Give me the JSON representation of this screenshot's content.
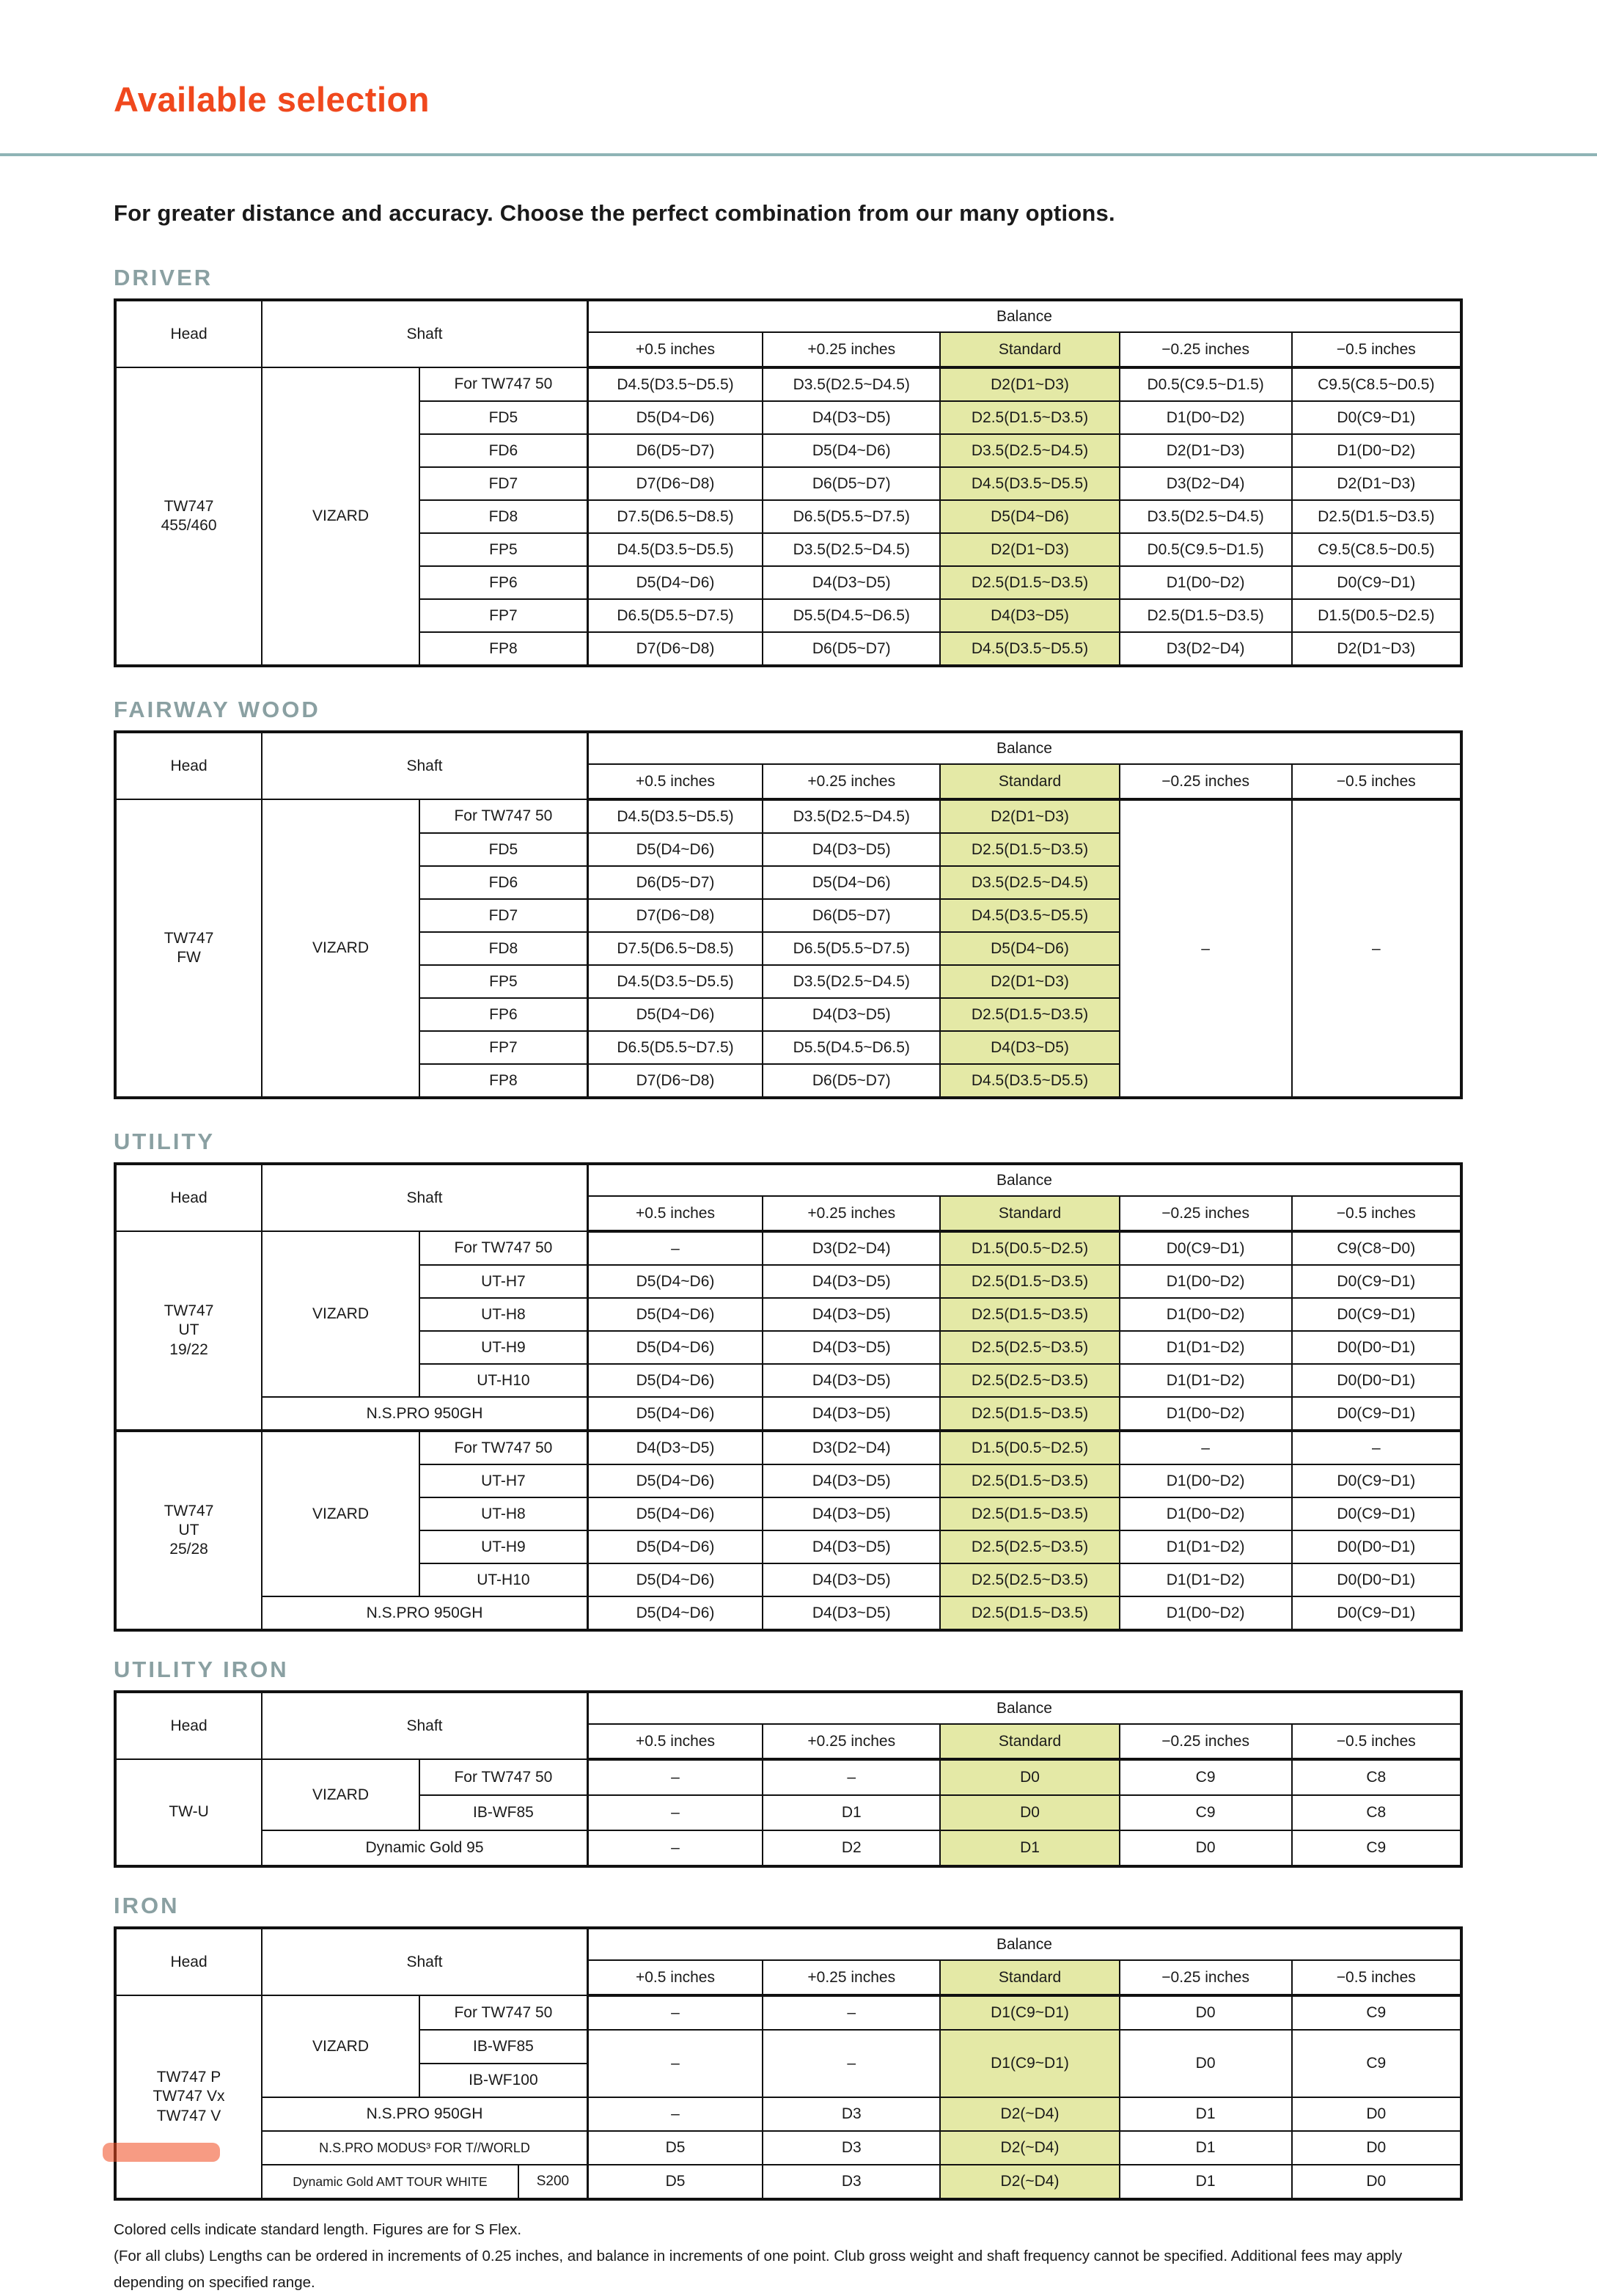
{
  "page": {
    "title": "Available selection",
    "subtitle": "For greater distance and accuracy. Choose the perfect combination from our many options.",
    "footnotes": [
      "Colored cells indicate standard length. Figures are for S Flex.",
      "(For all clubs) Lengths can be ordered in increments of 0.25 inches, and balance in increments of one point. Club gross weight and shaft frequency cannot be specified. Additional fees may apply depending on specified range."
    ],
    "colors": {
      "accent_orange": "#f0481d",
      "rule_teal": "#8fb4b6",
      "section_title": "#8aa0a2",
      "standard_highlight": "#e4e9a6",
      "border_black": "#111111"
    }
  },
  "table_headers": {
    "head": "Head",
    "shaft": "Shaft",
    "balance": "Balance",
    "cols": [
      "+0.5 inches",
      "+0.25 inches",
      "Standard",
      "−0.25 inches",
      "−0.5 inches"
    ],
    "standard_col_index": 2
  },
  "col_widths": [
    "10.9%",
    "11.7%",
    "12.5%",
    "13.0%",
    "13.2%",
    "13.3%",
    "12.8%",
    "12.6%"
  ],
  "sections": [
    {
      "title": "DRIVER",
      "rows": [
        [
          {
            "t": "TW747\n455/460",
            "rs": 9,
            "k": "head"
          },
          {
            "t": "VIZARD",
            "rs": 9,
            "k": "sg"
          },
          {
            "t": "For TW747 50",
            "k": "sn"
          },
          {
            "t": "D4.5(D3.5~D5.5)"
          },
          {
            "t": "D3.5(D2.5~D4.5)"
          },
          {
            "t": "D2(D1~D3)",
            "k": "std"
          },
          {
            "t": "D0.5(C9.5~D1.5)"
          },
          {
            "t": "C9.5(C8.5~D0.5)"
          }
        ],
        [
          {
            "t": "FD5",
            "k": "sn"
          },
          {
            "t": "D5(D4~D6)"
          },
          {
            "t": "D4(D3~D5)"
          },
          {
            "t": "D2.5(D1.5~D3.5)",
            "k": "std"
          },
          {
            "t": "D1(D0~D2)"
          },
          {
            "t": "D0(C9~D1)"
          }
        ],
        [
          {
            "t": "FD6",
            "k": "sn"
          },
          {
            "t": "D6(D5~D7)"
          },
          {
            "t": "D5(D4~D6)"
          },
          {
            "t": "D3.5(D2.5~D4.5)",
            "k": "std"
          },
          {
            "t": "D2(D1~D3)"
          },
          {
            "t": "D1(D0~D2)"
          }
        ],
        [
          {
            "t": "FD7",
            "k": "sn"
          },
          {
            "t": "D7(D6~D8)"
          },
          {
            "t": "D6(D5~D7)"
          },
          {
            "t": "D4.5(D3.5~D5.5)",
            "k": "std"
          },
          {
            "t": "D3(D2~D4)"
          },
          {
            "t": "D2(D1~D3)"
          }
        ],
        [
          {
            "t": "FD8",
            "k": "sn"
          },
          {
            "t": "D7.5(D6.5~D8.5)"
          },
          {
            "t": "D6.5(D5.5~D7.5)"
          },
          {
            "t": "D5(D4~D6)",
            "k": "std"
          },
          {
            "t": "D3.5(D2.5~D4.5)"
          },
          {
            "t": "D2.5(D1.5~D3.5)"
          }
        ],
        [
          {
            "t": "FP5",
            "k": "sn"
          },
          {
            "t": "D4.5(D3.5~D5.5)"
          },
          {
            "t": "D3.5(D2.5~D4.5)"
          },
          {
            "t": "D2(D1~D3)",
            "k": "std"
          },
          {
            "t": "D0.5(C9.5~D1.5)"
          },
          {
            "t": "C9.5(C8.5~D0.5)"
          }
        ],
        [
          {
            "t": "FP6",
            "k": "sn"
          },
          {
            "t": "D5(D4~D6)"
          },
          {
            "t": "D4(D3~D5)"
          },
          {
            "t": "D2.5(D1.5~D3.5)",
            "k": "std"
          },
          {
            "t": "D1(D0~D2)"
          },
          {
            "t": "D0(C9~D1)"
          }
        ],
        [
          {
            "t": "FP7",
            "k": "sn"
          },
          {
            "t": "D6.5(D5.5~D7.5)"
          },
          {
            "t": "D5.5(D4.5~D6.5)"
          },
          {
            "t": "D4(D3~D5)",
            "k": "std"
          },
          {
            "t": "D2.5(D1.5~D3.5)"
          },
          {
            "t": "D1.5(D0.5~D2.5)"
          }
        ],
        [
          {
            "t": "FP8",
            "k": "sn"
          },
          {
            "t": "D7(D6~D8)"
          },
          {
            "t": "D6(D5~D7)"
          },
          {
            "t": "D4.5(D3.5~D5.5)",
            "k": "std"
          },
          {
            "t": "D3(D2~D4)"
          },
          {
            "t": "D2(D1~D3)"
          }
        ]
      ]
    },
    {
      "title": "FAIRWAY WOOD",
      "rows": [
        [
          {
            "t": "TW747\nFW",
            "rs": 9,
            "k": "head"
          },
          {
            "t": "VIZARD",
            "rs": 9,
            "k": "sg"
          },
          {
            "t": "For TW747 50",
            "k": "sn"
          },
          {
            "t": "D4.5(D3.5~D5.5)"
          },
          {
            "t": "D3.5(D2.5~D4.5)"
          },
          {
            "t": "D2(D1~D3)",
            "k": "std"
          },
          {
            "t": "–",
            "rs": 9,
            "k": "dash"
          },
          {
            "t": "–",
            "rs": 9,
            "k": "dash"
          }
        ],
        [
          {
            "t": "FD5",
            "k": "sn"
          },
          {
            "t": "D5(D4~D6)"
          },
          {
            "t": "D4(D3~D5)"
          },
          {
            "t": "D2.5(D1.5~D3.5)",
            "k": "std"
          }
        ],
        [
          {
            "t": "FD6",
            "k": "sn"
          },
          {
            "t": "D6(D5~D7)"
          },
          {
            "t": "D5(D4~D6)"
          },
          {
            "t": "D3.5(D2.5~D4.5)",
            "k": "std"
          }
        ],
        [
          {
            "t": "FD7",
            "k": "sn"
          },
          {
            "t": "D7(D6~D8)"
          },
          {
            "t": "D6(D5~D7)"
          },
          {
            "t": "D4.5(D3.5~D5.5)",
            "k": "std"
          }
        ],
        [
          {
            "t": "FD8",
            "k": "sn"
          },
          {
            "t": "D7.5(D6.5~D8.5)"
          },
          {
            "t": "D6.5(D5.5~D7.5)"
          },
          {
            "t": "D5(D4~D6)",
            "k": "std"
          }
        ],
        [
          {
            "t": "FP5",
            "k": "sn"
          },
          {
            "t": "D4.5(D3.5~D5.5)"
          },
          {
            "t": "D3.5(D2.5~D4.5)"
          },
          {
            "t": "D2(D1~D3)",
            "k": "std"
          }
        ],
        [
          {
            "t": "FP6",
            "k": "sn"
          },
          {
            "t": "D5(D4~D6)"
          },
          {
            "t": "D4(D3~D5)"
          },
          {
            "t": "D2.5(D1.5~D3.5)",
            "k": "std"
          }
        ],
        [
          {
            "t": "FP7",
            "k": "sn"
          },
          {
            "t": "D6.5(D5.5~D7.5)"
          },
          {
            "t": "D5.5(D4.5~D6.5)"
          },
          {
            "t": "D4(D3~D5)",
            "k": "std"
          }
        ],
        [
          {
            "t": "FP8",
            "k": "sn"
          },
          {
            "t": "D7(D6~D8)"
          },
          {
            "t": "D6(D5~D7)"
          },
          {
            "t": "D4.5(D3.5~D5.5)",
            "k": "std"
          }
        ]
      ]
    },
    {
      "title": "UTILITY",
      "rows": [
        [
          {
            "t": "TW747\nUT\n19/22",
            "rs": 6,
            "k": "head"
          },
          {
            "t": "VIZARD",
            "rs": 5,
            "k": "sg"
          },
          {
            "t": "For TW747 50",
            "k": "sn"
          },
          {
            "t": "–",
            "k": "dash"
          },
          {
            "t": "D3(D2~D4)"
          },
          {
            "t": "D1.5(D0.5~D2.5)",
            "k": "std"
          },
          {
            "t": "D0(C9~D1)"
          },
          {
            "t": "C9(C8~D0)"
          }
        ],
        [
          {
            "t": "UT-H7",
            "k": "sn"
          },
          {
            "t": "D5(D4~D6)"
          },
          {
            "t": "D4(D3~D5)"
          },
          {
            "t": "D2.5(D1.5~D3.5)",
            "k": "std"
          },
          {
            "t": "D1(D0~D2)"
          },
          {
            "t": "D0(C9~D1)"
          }
        ],
        [
          {
            "t": "UT-H8",
            "k": "sn"
          },
          {
            "t": "D5(D4~D6)"
          },
          {
            "t": "D4(D3~D5)"
          },
          {
            "t": "D2.5(D1.5~D3.5)",
            "k": "std"
          },
          {
            "t": "D1(D0~D2)"
          },
          {
            "t": "D0(C9~D1)"
          }
        ],
        [
          {
            "t": "UT-H9",
            "k": "sn"
          },
          {
            "t": "D5(D4~D6)"
          },
          {
            "t": "D4(D3~D5)"
          },
          {
            "t": "D2.5(D2.5~D3.5)",
            "k": "std"
          },
          {
            "t": "D1(D1~D2)"
          },
          {
            "t": "D0(D0~D1)"
          }
        ],
        [
          {
            "t": "UT-H10",
            "k": "sn"
          },
          {
            "t": "D5(D4~D6)"
          },
          {
            "t": "D4(D3~D5)"
          },
          {
            "t": "D2.5(D2.5~D3.5)",
            "k": "std"
          },
          {
            "t": "D1(D1~D2)"
          },
          {
            "t": "D0(D0~D1)"
          }
        ],
        [
          {
            "t": "N.S.PRO 950GH",
            "cs": 2,
            "k": "sn2"
          },
          {
            "t": "D5(D4~D6)"
          },
          {
            "t": "D4(D3~D5)"
          },
          {
            "t": "D2.5(D1.5~D3.5)",
            "k": "std"
          },
          {
            "t": "D1(D0~D2)"
          },
          {
            "t": "D0(C9~D1)"
          }
        ],
        [
          {
            "t": "TW747\nUT\n25/28",
            "rs": 6,
            "k": "head",
            "bt": true
          },
          {
            "t": "VIZARD",
            "rs": 5,
            "k": "sg",
            "bt": true
          },
          {
            "t": "For TW747 50",
            "k": "sn",
            "bt": true
          },
          {
            "t": "D4(D3~D5)",
            "bt": true
          },
          {
            "t": "D3(D2~D4)",
            "bt": true
          },
          {
            "t": "D1.5(D0.5~D2.5)",
            "k": "std",
            "bt": true
          },
          {
            "t": "–",
            "k": "dash",
            "bt": true
          },
          {
            "t": "–",
            "k": "dash",
            "bt": true
          }
        ],
        [
          {
            "t": "UT-H7",
            "k": "sn"
          },
          {
            "t": "D5(D4~D6)"
          },
          {
            "t": "D4(D3~D5)"
          },
          {
            "t": "D2.5(D1.5~D3.5)",
            "k": "std"
          },
          {
            "t": "D1(D0~D2)"
          },
          {
            "t": "D0(C9~D1)"
          }
        ],
        [
          {
            "t": "UT-H8",
            "k": "sn"
          },
          {
            "t": "D5(D4~D6)"
          },
          {
            "t": "D4(D3~D5)"
          },
          {
            "t": "D2.5(D1.5~D3.5)",
            "k": "std"
          },
          {
            "t": "D1(D0~D2)"
          },
          {
            "t": "D0(C9~D1)"
          }
        ],
        [
          {
            "t": "UT-H9",
            "k": "sn"
          },
          {
            "t": "D5(D4~D6)"
          },
          {
            "t": "D4(D3~D5)"
          },
          {
            "t": "D2.5(D2.5~D3.5)",
            "k": "std"
          },
          {
            "t": "D1(D1~D2)"
          },
          {
            "t": "D0(D0~D1)"
          }
        ],
        [
          {
            "t": "UT-H10",
            "k": "sn"
          },
          {
            "t": "D5(D4~D6)"
          },
          {
            "t": "D4(D3~D5)"
          },
          {
            "t": "D2.5(D2.5~D3.5)",
            "k": "std"
          },
          {
            "t": "D1(D1~D2)"
          },
          {
            "t": "D0(D0~D1)"
          }
        ],
        [
          {
            "t": "N.S.PRO 950GH",
            "cs": 2,
            "k": "sn2"
          },
          {
            "t": "D5(D4~D6)"
          },
          {
            "t": "D4(D3~D5)"
          },
          {
            "t": "D2.5(D1.5~D3.5)",
            "k": "std"
          },
          {
            "t": "D1(D0~D2)"
          },
          {
            "t": "D0(C9~D1)"
          }
        ]
      ]
    },
    {
      "title": "UTILITY IRON",
      "rows": [
        [
          {
            "t": "TW-U",
            "rs": 3,
            "k": "head"
          },
          {
            "t": "VIZARD",
            "rs": 2,
            "k": "sg"
          },
          {
            "t": "For TW747 50",
            "k": "sn"
          },
          {
            "t": "–",
            "k": "dash"
          },
          {
            "t": "–",
            "k": "dash"
          },
          {
            "t": "D0",
            "k": "std"
          },
          {
            "t": "C9"
          },
          {
            "t": "C8"
          }
        ],
        [
          {
            "t": "IB-WF85",
            "k": "sn"
          },
          {
            "t": "–",
            "k": "dash"
          },
          {
            "t": "D1"
          },
          {
            "t": "D0",
            "k": "std"
          },
          {
            "t": "C9"
          },
          {
            "t": "C8"
          }
        ],
        [
          {
            "t": "Dynamic Gold 95",
            "cs": 2,
            "k": "sn2"
          },
          {
            "t": "–",
            "k": "dash"
          },
          {
            "t": "D2"
          },
          {
            "t": "D1",
            "k": "std"
          },
          {
            "t": "D0"
          },
          {
            "t": "C9"
          }
        ]
      ]
    },
    {
      "title": "IRON",
      "rows": [
        [
          {
            "t": "TW747 P\nTW747 Vx\nTW747 V",
            "rs": 6,
            "k": "head"
          },
          {
            "t": "VIZARD",
            "rs": 3,
            "k": "sg"
          },
          {
            "t": "For TW747 50",
            "k": "sn"
          },
          {
            "t": "–",
            "k": "dash"
          },
          {
            "t": "–",
            "k": "dash"
          },
          {
            "t": "D1(C9~D1)",
            "k": "std"
          },
          {
            "t": "D0"
          },
          {
            "t": "C9"
          }
        ],
        [
          {
            "t": "IB-WF85",
            "k": "sn"
          },
          {
            "t": "–",
            "rs": 2,
            "k": "dash"
          },
          {
            "t": "–",
            "rs": 2,
            "k": "dash"
          },
          {
            "t": "D1(C9~D1)",
            "rs": 2,
            "k": "std"
          },
          {
            "t": "D0",
            "rs": 2
          },
          {
            "t": "C9",
            "rs": 2
          }
        ],
        [
          {
            "t": "IB-WF100",
            "k": "sn"
          }
        ],
        [
          {
            "t": "N.S.PRO 950GH",
            "cs": 2,
            "k": "sn2"
          },
          {
            "t": "–",
            "k": "dash"
          },
          {
            "t": "D3"
          },
          {
            "t": "D2(~D4)",
            "k": "std"
          },
          {
            "t": "D1"
          },
          {
            "t": "D0"
          }
        ],
        [
          {
            "t": "N.S.PRO MODUS³ FOR T//WORLD",
            "cs": 2,
            "k": "sn2"
          },
          {
            "t": "D5"
          },
          {
            "t": "D3"
          },
          {
            "t": "D2(~D4)",
            "k": "std"
          },
          {
            "t": "D1"
          },
          {
            "t": "D0"
          }
        ],
        [
          {
            "k": "split",
            "cs": 2,
            "parts": [
              "Dynamic Gold AMT TOUR WHITE",
              "S200"
            ]
          },
          {
            "t": "D5"
          },
          {
            "t": "D3"
          },
          {
            "t": "D2(~D4)",
            "k": "std"
          },
          {
            "t": "D1"
          },
          {
            "t": "D0"
          }
        ]
      ]
    }
  ]
}
